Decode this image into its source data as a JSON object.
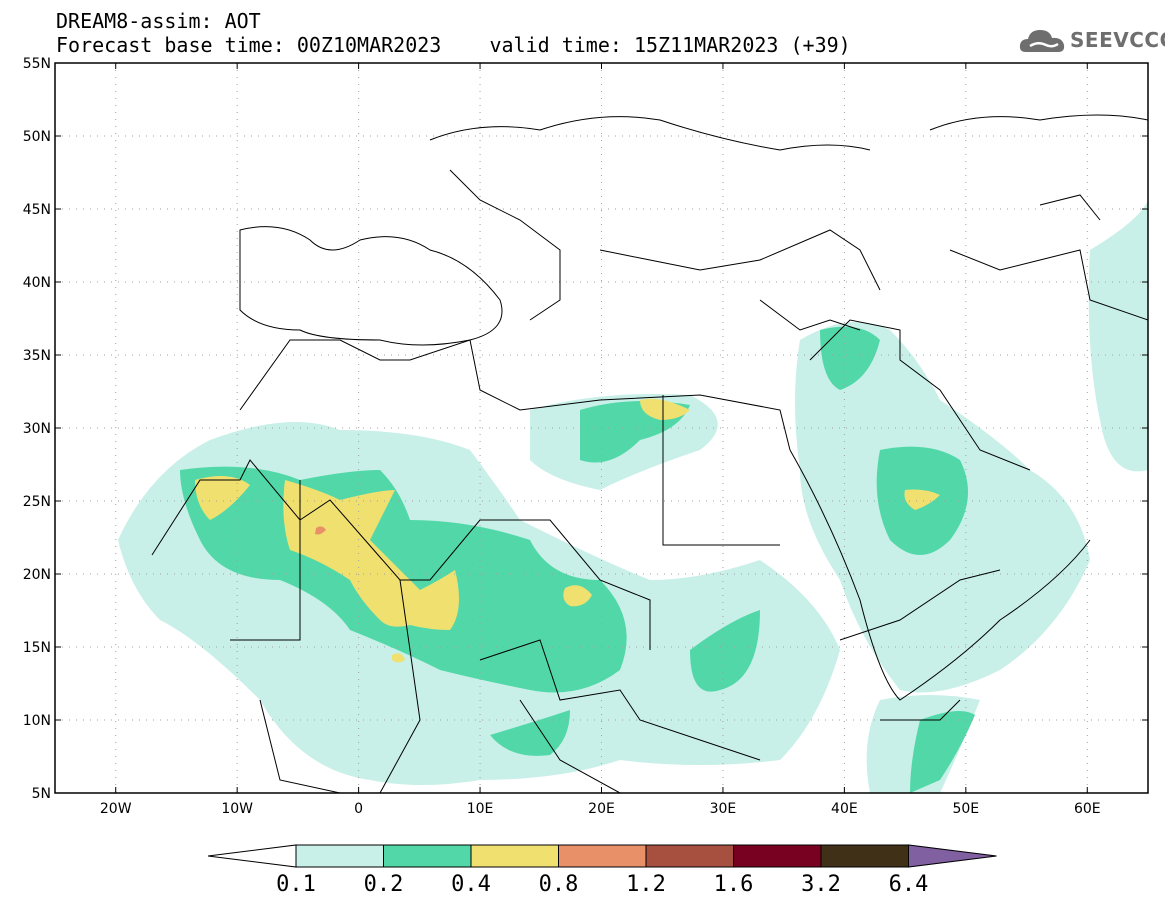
{
  "title": {
    "line1": "DREAM8-assim: AOT",
    "line2": "Forecast base time: 00Z10MAR2023    valid time: 15Z11MAR2023 (+39)"
  },
  "logo": {
    "text": "SEEVCCC",
    "icon": "cloud-icon",
    "color": "#6e6e6e"
  },
  "map": {
    "lon_range": [
      -25,
      65
    ],
    "lat_range": [
      5,
      55
    ],
    "lat_ticks": [
      {
        "value": 55,
        "label": "55N"
      },
      {
        "value": 50,
        "label": "50N"
      },
      {
        "value": 45,
        "label": "45N"
      },
      {
        "value": 40,
        "label": "40N"
      },
      {
        "value": 35,
        "label": "35N"
      },
      {
        "value": 30,
        "label": "30N"
      },
      {
        "value": 25,
        "label": "25N"
      },
      {
        "value": 20,
        "label": "20N"
      },
      {
        "value": 15,
        "label": "15N"
      },
      {
        "value": 10,
        "label": "10N"
      },
      {
        "value": 5,
        "label": "5N"
      }
    ],
    "lon_ticks": [
      {
        "value": -20,
        "label": "20W"
      },
      {
        "value": -10,
        "label": "10W"
      },
      {
        "value": 0,
        "label": "0"
      },
      {
        "value": 10,
        "label": "10E"
      },
      {
        "value": 20,
        "label": "20E"
      },
      {
        "value": 30,
        "label": "30E"
      },
      {
        "value": 40,
        "label": "40E"
      },
      {
        "value": 50,
        "label": "50E"
      },
      {
        "value": 60,
        "label": "60E"
      }
    ],
    "grid": "dotted"
  },
  "colorbar": {
    "levels": [
      "0.1",
      "0.2",
      "0.4",
      "0.8",
      "1.2",
      "1.6",
      "3.2",
      "6.4"
    ],
    "colors": [
      "#c8f0e8",
      "#52d8a8",
      "#f0e070",
      "#e89068",
      "#a85040",
      "#780020",
      "#403018"
    ],
    "over_color": "#8060a0",
    "under_color": "#ffffff"
  }
}
